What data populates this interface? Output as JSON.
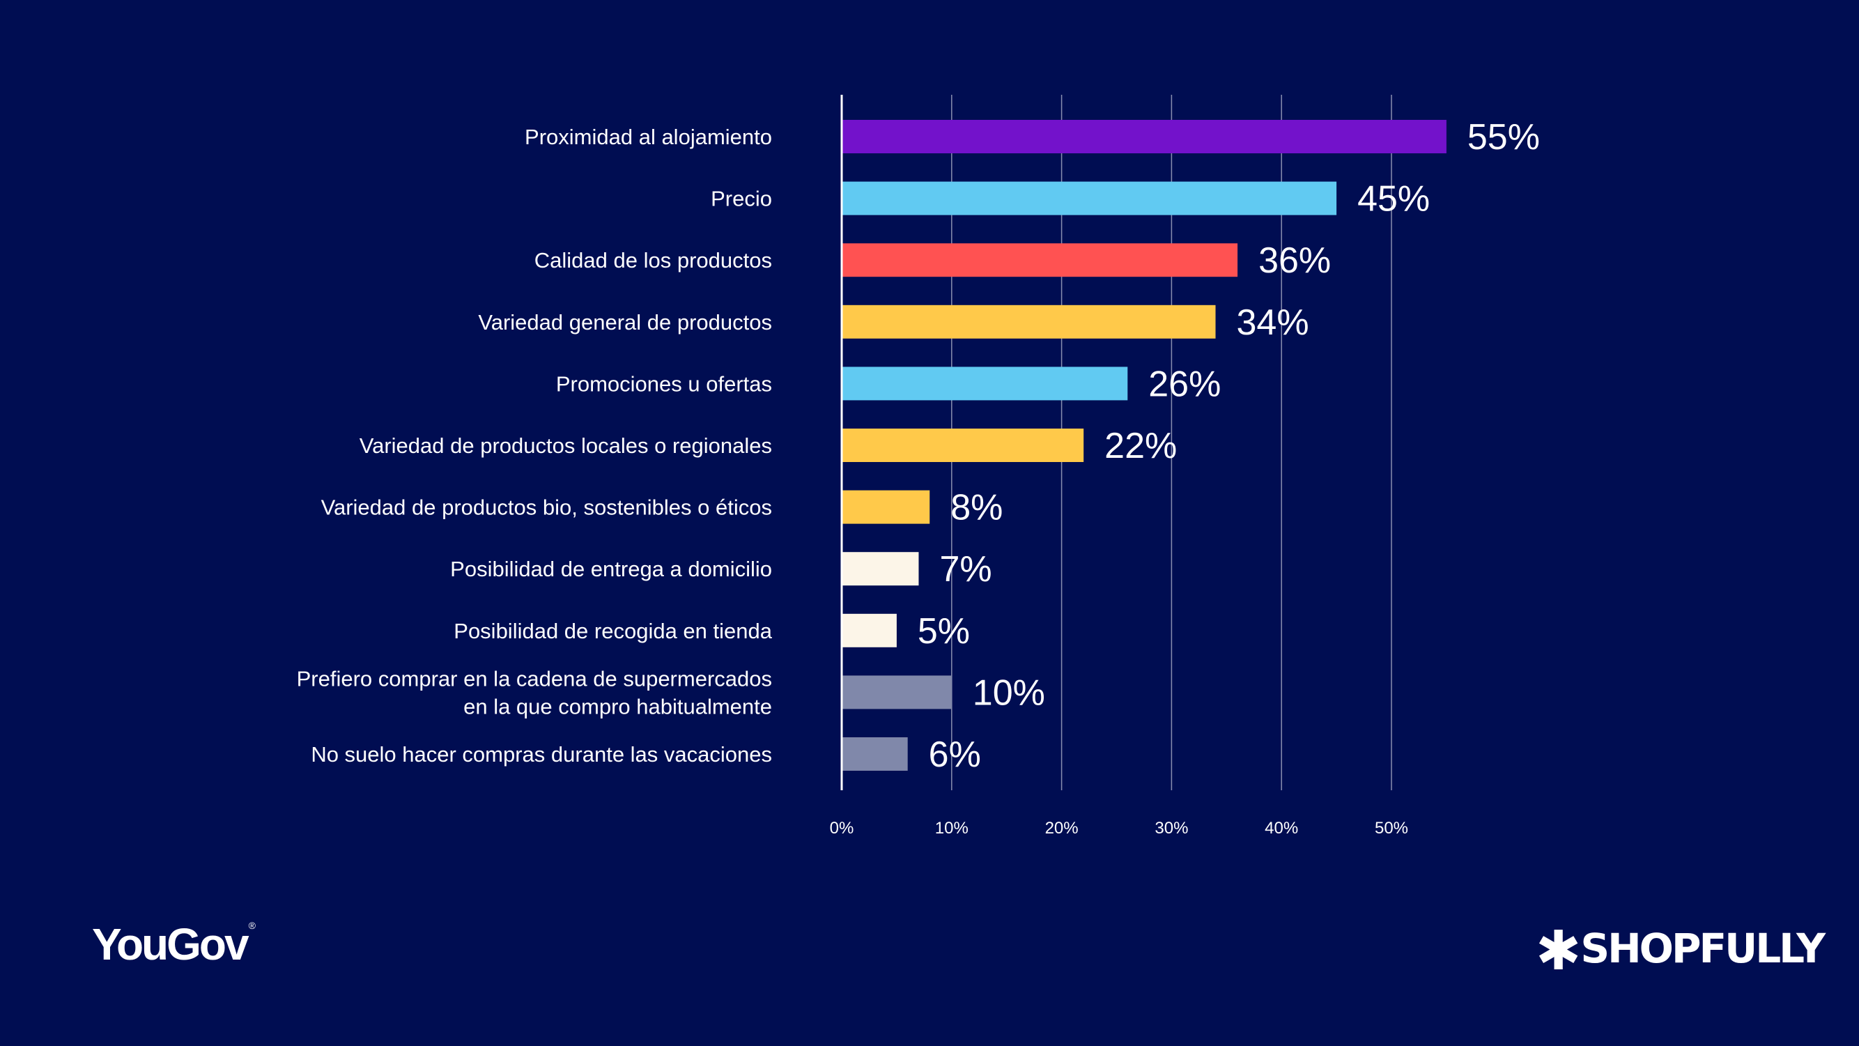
{
  "chart_data": {
    "type": "bar",
    "orientation": "horizontal",
    "title": "",
    "xlabel": "",
    "ylabel": "",
    "xlim": [
      0,
      60
    ],
    "grid": true,
    "x_ticks": [
      "0%",
      "10%",
      "20%",
      "30%",
      "40%",
      "50%"
    ],
    "x_tick_values": [
      0,
      10,
      20,
      30,
      40,
      50
    ],
    "categories": [
      [
        "Proximidad al alojamiento"
      ],
      [
        "Precio"
      ],
      [
        "Calidad de los productos"
      ],
      [
        "Variedad general de productos"
      ],
      [
        "Promociones u ofertas"
      ],
      [
        "Variedad de productos locales o regionales"
      ],
      [
        "Variedad de productos bio, sostenibles o éticos"
      ],
      [
        "Posibilidad de entrega a domicilio"
      ],
      [
        "Posibilidad de recogida en tienda"
      ],
      [
        "Prefiero comprar en la cadena de supermercados",
        "en la que compro habitualmente"
      ],
      [
        "No suelo hacer compras durante las vacaciones"
      ]
    ],
    "values": [
      55,
      45,
      36,
      34,
      26,
      22,
      8,
      7,
      5,
      10,
      6
    ],
    "value_labels": [
      "55%",
      "45%",
      "36%",
      "34%",
      "26%",
      "22%",
      "8%",
      "7%",
      "5%",
      "10%",
      "6%"
    ],
    "colors": [
      "#7312cb",
      "#61caf2",
      "#ff5252",
      "#ffc94a",
      "#61caf2",
      "#ffc94a",
      "#ffc94a",
      "#fcf5e8",
      "#fcf5e8",
      "#8088aa",
      "#8088aa"
    ]
  },
  "theme": {
    "background": "#000d52",
    "grid_color": "#8a8fb0",
    "axis_color": "#ffffff",
    "text_color": "#ffffff"
  },
  "branding": {
    "left_logo": "YouGov",
    "left_logo_mark": "®",
    "right_logo": "SHOPFULLY",
    "right_logo_icon": "asterisk-icon"
  }
}
